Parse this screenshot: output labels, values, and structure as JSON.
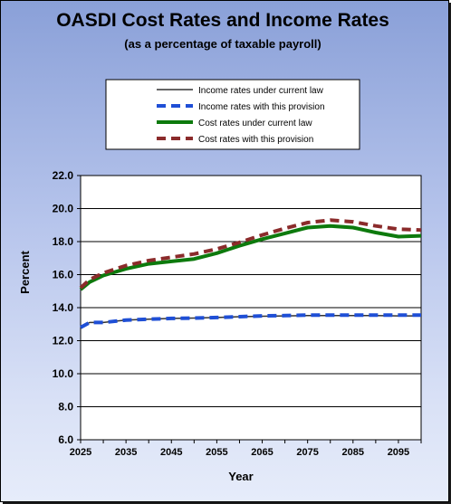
{
  "chart_data": {
    "type": "line",
    "title": "OASDI Cost Rates and Income Rates",
    "subtitle": "(as a percentage of taxable payroll)",
    "xlabel": "Year",
    "ylabel": "Percent",
    "xlim": [
      2025,
      2100
    ],
    "ylim": [
      6.0,
      22.0
    ],
    "y_ticks": [
      "6.0",
      "8.0",
      "10.0",
      "12.0",
      "14.0",
      "16.0",
      "18.0",
      "20.0",
      "22.0"
    ],
    "x_ticks": [
      "2025",
      "2035",
      "2045",
      "2055",
      "2065",
      "2075",
      "2085",
      "2095"
    ],
    "grid": "horizontal",
    "legend": "top",
    "x": [
      2025,
      2027,
      2030,
      2035,
      2040,
      2045,
      2050,
      2055,
      2060,
      2065,
      2070,
      2075,
      2080,
      2085,
      2090,
      2095,
      2100
    ],
    "series": [
      {
        "name": "Income rates under current law",
        "style": "solid-thin",
        "color": "#333333",
        "values": [
          12.8,
          13.1,
          13.1,
          13.25,
          13.3,
          13.35,
          13.37,
          13.4,
          13.45,
          13.48,
          13.5,
          13.52,
          13.52,
          13.52,
          13.52,
          13.5,
          13.5
        ]
      },
      {
        "name": "Income rates with this provision",
        "style": "dashed",
        "color": "#1f4fd6",
        "values": [
          12.8,
          13.1,
          13.1,
          13.25,
          13.3,
          13.35,
          13.37,
          13.4,
          13.45,
          13.5,
          13.52,
          13.55,
          13.55,
          13.55,
          13.55,
          13.55,
          13.55
        ]
      },
      {
        "name": "Cost rates under current law",
        "style": "solid-thick",
        "color": "#0d7a0d",
        "values": [
          15.1,
          15.55,
          15.95,
          16.35,
          16.65,
          16.8,
          16.95,
          17.3,
          17.75,
          18.15,
          18.5,
          18.85,
          18.95,
          18.85,
          18.55,
          18.3,
          18.35
        ]
      },
      {
        "name": "Cost rates with this provision",
        "style": "dashed",
        "color": "#8b2b2b",
        "values": [
          15.2,
          15.7,
          16.1,
          16.55,
          16.85,
          17.05,
          17.25,
          17.55,
          17.95,
          18.4,
          18.8,
          19.15,
          19.3,
          19.2,
          18.95,
          18.75,
          18.7
        ]
      }
    ]
  }
}
